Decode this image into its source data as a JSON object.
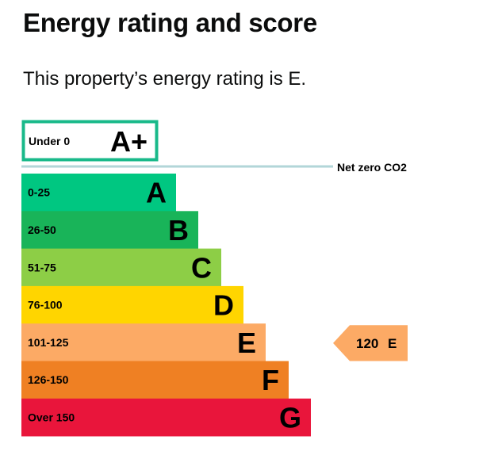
{
  "page": {
    "title": "Energy rating and score",
    "summary": "This property’s energy rating is E."
  },
  "chart_data": {
    "type": "bar",
    "title": "",
    "orientation": "horizontal",
    "bands": [
      {
        "letter": "A+",
        "range": "Under 0",
        "color": "#ffffff",
        "border": "#19b98a",
        "outlined": true
      },
      {
        "letter": "A",
        "range": "0-25",
        "color": "#00c781"
      },
      {
        "letter": "B",
        "range": "26-50",
        "color": "#19b459"
      },
      {
        "letter": "C",
        "range": "51-75",
        "color": "#8dce46"
      },
      {
        "letter": "D",
        "range": "76-100",
        "color": "#ffd500"
      },
      {
        "letter": "E",
        "range": "101-125",
        "color": "#fcaa65"
      },
      {
        "letter": "F",
        "range": "126-150",
        "color": "#ef8023"
      },
      {
        "letter": "G",
        "range": "Over 150",
        "color": "#e9153b"
      }
    ],
    "net_zero": {
      "label": "Net zero CO2",
      "color": "#b2d6d8"
    },
    "current": {
      "score": 120,
      "score_label": "120",
      "rating": "E",
      "color": "#fcaa65"
    }
  }
}
